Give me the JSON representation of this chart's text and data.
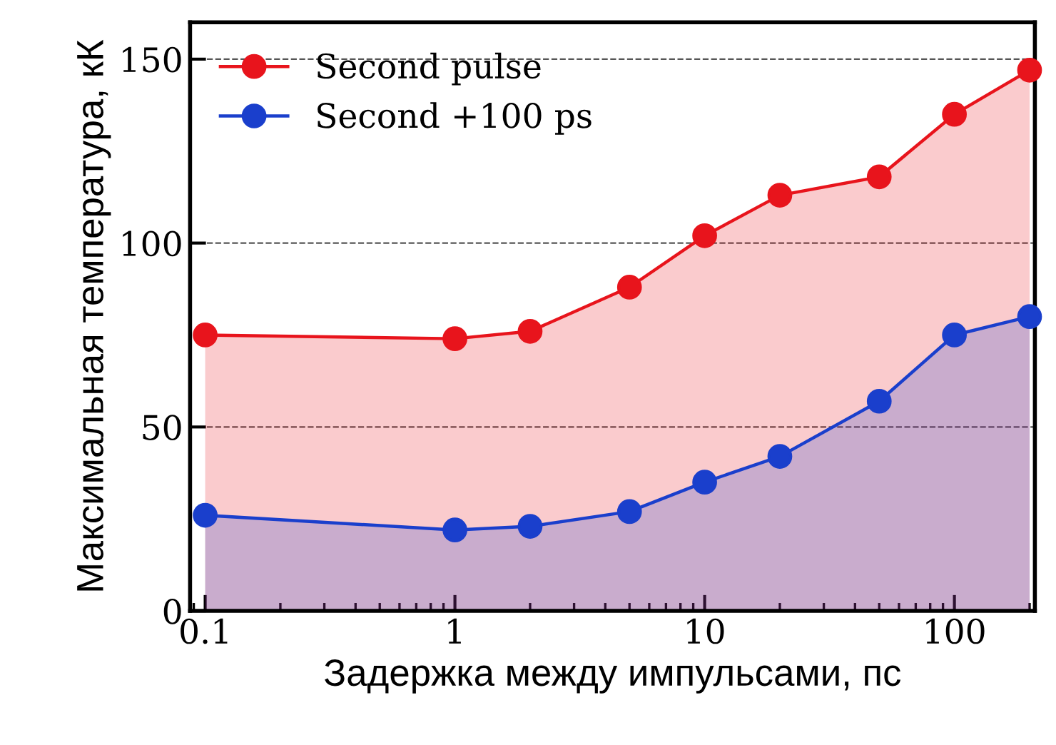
{
  "chart_data": {
    "type": "area",
    "xlabel": "Задержка между импульсами, пс",
    "ylabel": "Максимальная температура, кК",
    "x": [
      0.1,
      1,
      2,
      5,
      10,
      20,
      50,
      100,
      200
    ],
    "series": [
      {
        "name": "Second pulse",
        "color": "#e8141c",
        "values": [
          75,
          74,
          76,
          88,
          102,
          113,
          118,
          135,
          147
        ]
      },
      {
        "name": "Second +100 ps",
        "color": "#1a3fcc",
        "values": [
          26,
          22,
          23,
          27,
          35,
          42,
          57,
          75,
          80
        ]
      }
    ],
    "log": "x",
    "xlim": [
      0.087,
      210
    ],
    "xticks": [
      0.1,
      1,
      10,
      100
    ],
    "ylim": [
      0,
      160
    ],
    "yticks": [
      0,
      50,
      100,
      150
    ],
    "grid": "y",
    "legend": "top left",
    "marker": "circle",
    "line_style": "solid"
  }
}
